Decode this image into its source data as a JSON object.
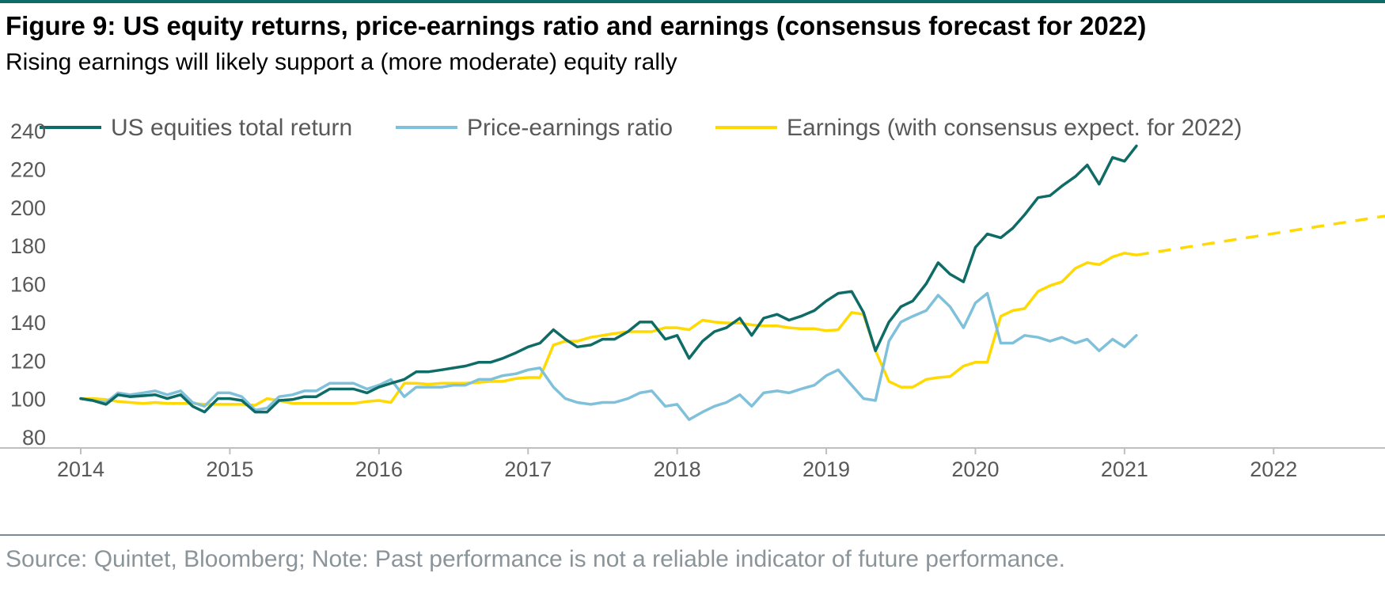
{
  "header": {
    "title": "Figure 9: US equity returns, price-earnings ratio and earnings (consensus forecast for 2022)",
    "subtitle": "Rising earnings will likely support a (more moderate) equity rally"
  },
  "footer": {
    "source": "Source: Quintet, Bloomberg; Note: Past performance is not a reliable indicator of future performance."
  },
  "colors": {
    "equities": "#0e6b66",
    "pe": "#7fc1da",
    "earnings": "#ffd900",
    "axis": "#bfbfbf",
    "text": "#595959"
  },
  "chart_data": {
    "type": "line",
    "xlim": [
      2014,
      2022.8
    ],
    "ylim": [
      80,
      240
    ],
    "yticks": [
      80,
      100,
      120,
      140,
      160,
      180,
      200,
      220,
      240
    ],
    "xticks": [
      2014,
      2015,
      2016,
      2017,
      2018,
      2019,
      2020,
      2021,
      2022
    ],
    "xtick_labels": [
      "2014",
      "2015",
      "2016",
      "2017",
      "2018",
      "2019",
      "2020",
      "2021",
      "2022"
    ],
    "ytick_labels": [
      "80",
      "100",
      "120",
      "140",
      "160",
      "180",
      "200",
      "220",
      "240"
    ],
    "legend_position": "top",
    "grid": false,
    "series": [
      {
        "name": "US equities total return",
        "style": "solid",
        "points": [
          [
            2014.0,
            100
          ],
          [
            2014.08,
            99
          ],
          [
            2014.17,
            97
          ],
          [
            2014.25,
            102
          ],
          [
            2014.33,
            101
          ],
          [
            2014.42,
            101.5
          ],
          [
            2014.5,
            102
          ],
          [
            2014.58,
            100
          ],
          [
            2014.67,
            102
          ],
          [
            2014.75,
            96
          ],
          [
            2014.83,
            93
          ],
          [
            2014.92,
            100
          ],
          [
            2015.0,
            100
          ],
          [
            2015.08,
            99
          ],
          [
            2015.17,
            93
          ],
          [
            2015.25,
            93
          ],
          [
            2015.33,
            99
          ],
          [
            2015.42,
            99.5
          ],
          [
            2015.5,
            101
          ],
          [
            2015.58,
            101
          ],
          [
            2015.67,
            105
          ],
          [
            2015.75,
            105
          ],
          [
            2015.83,
            105
          ],
          [
            2015.92,
            103
          ],
          [
            2016.0,
            106
          ],
          [
            2016.08,
            108
          ],
          [
            2016.17,
            110
          ],
          [
            2016.25,
            114
          ],
          [
            2016.33,
            114
          ],
          [
            2016.42,
            115
          ],
          [
            2016.5,
            116
          ],
          [
            2016.58,
            117
          ],
          [
            2016.67,
            119
          ],
          [
            2016.75,
            119
          ],
          [
            2016.83,
            121
          ],
          [
            2016.92,
            124
          ],
          [
            2017.0,
            127
          ],
          [
            2017.08,
            129
          ],
          [
            2017.17,
            136
          ],
          [
            2017.25,
            131
          ],
          [
            2017.33,
            127
          ],
          [
            2017.42,
            128
          ],
          [
            2017.5,
            131
          ],
          [
            2017.58,
            131
          ],
          [
            2017.67,
            135
          ],
          [
            2017.75,
            140
          ],
          [
            2017.83,
            140
          ],
          [
            2017.92,
            131
          ],
          [
            2018.0,
            133
          ],
          [
            2018.08,
            121
          ],
          [
            2018.17,
            130
          ],
          [
            2018.25,
            135
          ],
          [
            2018.33,
            137
          ],
          [
            2018.42,
            142
          ],
          [
            2018.5,
            133
          ],
          [
            2018.58,
            142
          ],
          [
            2018.67,
            144
          ],
          [
            2018.75,
            141
          ],
          [
            2018.83,
            143
          ],
          [
            2018.92,
            146
          ],
          [
            2019.0,
            151
          ],
          [
            2019.08,
            155
          ],
          [
            2019.17,
            156
          ],
          [
            2019.25,
            145
          ],
          [
            2019.33,
            125
          ],
          [
            2019.42,
            140
          ],
          [
            2019.5,
            148
          ],
          [
            2019.58,
            151
          ],
          [
            2019.67,
            160
          ],
          [
            2019.75,
            171
          ],
          [
            2019.83,
            165
          ],
          [
            2019.92,
            161
          ],
          [
            2020.0,
            179
          ],
          [
            2020.08,
            186
          ],
          [
            2020.17,
            184
          ],
          [
            2020.25,
            189
          ],
          [
            2020.33,
            196
          ],
          [
            2020.42,
            205
          ],
          [
            2020.5,
            206
          ],
          [
            2020.58,
            211
          ],
          [
            2020.67,
            216
          ],
          [
            2020.75,
            222
          ],
          [
            2020.83,
            212
          ],
          [
            2020.92,
            226
          ],
          [
            2021.0,
            224
          ],
          [
            2021.08,
            232
          ]
        ]
      },
      {
        "name": "Price-earnings ratio",
        "style": "solid",
        "points": [
          [
            2014.0,
            100
          ],
          [
            2014.08,
            99
          ],
          [
            2014.17,
            98
          ],
          [
            2014.25,
            103
          ],
          [
            2014.33,
            102
          ],
          [
            2014.42,
            103
          ],
          [
            2014.5,
            104
          ],
          [
            2014.58,
            102
          ],
          [
            2014.67,
            104
          ],
          [
            2014.75,
            98
          ],
          [
            2014.83,
            96
          ],
          [
            2014.92,
            103
          ],
          [
            2015.0,
            103
          ],
          [
            2015.08,
            101
          ],
          [
            2015.17,
            94
          ],
          [
            2015.25,
            95
          ],
          [
            2015.33,
            101
          ],
          [
            2015.42,
            102
          ],
          [
            2015.5,
            104
          ],
          [
            2015.58,
            104
          ],
          [
            2015.67,
            108
          ],
          [
            2015.75,
            108
          ],
          [
            2015.83,
            108
          ],
          [
            2015.92,
            105
          ],
          [
            2016.0,
            107
          ],
          [
            2016.08,
            110
          ],
          [
            2016.17,
            101
          ],
          [
            2016.25,
            106
          ],
          [
            2016.33,
            106
          ],
          [
            2016.42,
            106
          ],
          [
            2016.5,
            107
          ],
          [
            2016.58,
            107
          ],
          [
            2016.67,
            110
          ],
          [
            2016.75,
            110
          ],
          [
            2016.83,
            112
          ],
          [
            2016.92,
            113
          ],
          [
            2017.0,
            115
          ],
          [
            2017.08,
            116
          ],
          [
            2017.17,
            106
          ],
          [
            2017.25,
            100
          ],
          [
            2017.33,
            98
          ],
          [
            2017.42,
            97
          ],
          [
            2017.5,
            98
          ],
          [
            2017.58,
            98
          ],
          [
            2017.67,
            100
          ],
          [
            2017.75,
            103
          ],
          [
            2017.83,
            104
          ],
          [
            2017.92,
            96
          ],
          [
            2018.0,
            97
          ],
          [
            2018.08,
            89
          ],
          [
            2018.17,
            93
          ],
          [
            2018.25,
            96
          ],
          [
            2018.33,
            98
          ],
          [
            2018.42,
            102
          ],
          [
            2018.5,
            96
          ],
          [
            2018.58,
            103
          ],
          [
            2018.67,
            104
          ],
          [
            2018.75,
            103
          ],
          [
            2018.83,
            105
          ],
          [
            2018.92,
            107
          ],
          [
            2019.0,
            112
          ],
          [
            2019.08,
            115
          ],
          [
            2019.17,
            107
          ],
          [
            2019.25,
            100
          ],
          [
            2019.33,
            99
          ],
          [
            2019.42,
            130
          ],
          [
            2019.5,
            140
          ],
          [
            2019.58,
            143
          ],
          [
            2019.67,
            146
          ],
          [
            2019.75,
            154
          ],
          [
            2019.83,
            148
          ],
          [
            2019.92,
            137
          ],
          [
            2020.0,
            150
          ],
          [
            2020.08,
            155
          ],
          [
            2020.17,
            129
          ],
          [
            2020.25,
            129
          ],
          [
            2020.33,
            133
          ],
          [
            2020.42,
            132
          ],
          [
            2020.5,
            130
          ],
          [
            2020.58,
            132
          ],
          [
            2020.67,
            129
          ],
          [
            2020.75,
            131
          ],
          [
            2020.83,
            125
          ],
          [
            2020.92,
            131
          ],
          [
            2021.0,
            127
          ],
          [
            2021.08,
            133
          ]
        ]
      },
      {
        "name": "Earnings (with consensus expect. for 2022)",
        "style": "solid",
        "points": [
          [
            2014.0,
            100
          ],
          [
            2014.08,
            100
          ],
          [
            2014.17,
            99.5
          ],
          [
            2014.25,
            98.5
          ],
          [
            2014.33,
            98
          ],
          [
            2014.42,
            97.5
          ],
          [
            2014.5,
            98
          ],
          [
            2014.58,
            97.5
          ],
          [
            2014.67,
            97.5
          ],
          [
            2014.75,
            97.5
          ],
          [
            2014.83,
            97
          ],
          [
            2014.92,
            97
          ],
          [
            2015.0,
            97
          ],
          [
            2015.08,
            97
          ],
          [
            2015.17,
            96.5
          ],
          [
            2015.25,
            100
          ],
          [
            2015.33,
            99
          ],
          [
            2015.42,
            97.5
          ],
          [
            2015.5,
            97.5
          ],
          [
            2015.58,
            97.5
          ],
          [
            2015.67,
            97.5
          ],
          [
            2015.75,
            97.5
          ],
          [
            2015.83,
            97.5
          ],
          [
            2015.92,
            98.5
          ],
          [
            2016.0,
            99
          ],
          [
            2016.08,
            98
          ],
          [
            2016.17,
            108
          ],
          [
            2016.25,
            108
          ],
          [
            2016.33,
            107.5
          ],
          [
            2016.42,
            108
          ],
          [
            2016.5,
            108
          ],
          [
            2016.58,
            108
          ],
          [
            2016.67,
            108.5
          ],
          [
            2016.75,
            109
          ],
          [
            2016.83,
            109
          ],
          [
            2016.92,
            110.5
          ],
          [
            2017.0,
            111
          ],
          [
            2017.08,
            111
          ],
          [
            2017.17,
            128
          ],
          [
            2017.25,
            130
          ],
          [
            2017.33,
            130
          ],
          [
            2017.42,
            132
          ],
          [
            2017.5,
            133
          ],
          [
            2017.58,
            134
          ],
          [
            2017.67,
            135
          ],
          [
            2017.75,
            135
          ],
          [
            2017.83,
            135
          ],
          [
            2017.92,
            137
          ],
          [
            2018.0,
            137
          ],
          [
            2018.08,
            136
          ],
          [
            2018.17,
            141
          ],
          [
            2018.25,
            140
          ],
          [
            2018.33,
            139.5
          ],
          [
            2018.42,
            139.5
          ],
          [
            2018.5,
            138.5
          ],
          [
            2018.58,
            138
          ],
          [
            2018.67,
            138
          ],
          [
            2018.75,
            137
          ],
          [
            2018.83,
            136.5
          ],
          [
            2018.92,
            136.5
          ],
          [
            2019.0,
            135.5
          ],
          [
            2019.08,
            136
          ],
          [
            2019.17,
            145
          ],
          [
            2019.25,
            144
          ],
          [
            2019.33,
            125
          ],
          [
            2019.42,
            109
          ],
          [
            2019.5,
            106
          ],
          [
            2019.58,
            106
          ],
          [
            2019.67,
            110
          ],
          [
            2019.75,
            111
          ],
          [
            2019.83,
            111.5
          ],
          [
            2019.92,
            117
          ],
          [
            2020.0,
            119
          ],
          [
            2020.08,
            119
          ],
          [
            2020.17,
            143
          ],
          [
            2020.25,
            146
          ],
          [
            2020.33,
            147
          ],
          [
            2020.42,
            156
          ],
          [
            2020.5,
            159
          ],
          [
            2020.58,
            161
          ],
          [
            2020.67,
            168
          ],
          [
            2020.75,
            171
          ],
          [
            2020.83,
            170
          ],
          [
            2020.92,
            174
          ],
          [
            2021.0,
            176
          ],
          [
            2021.08,
            175
          ]
        ]
      },
      {
        "name": "",
        "style": "dashed",
        "points": [
          [
            2021.08,
            175
          ],
          [
            2022.8,
            196
          ]
        ]
      }
    ]
  }
}
